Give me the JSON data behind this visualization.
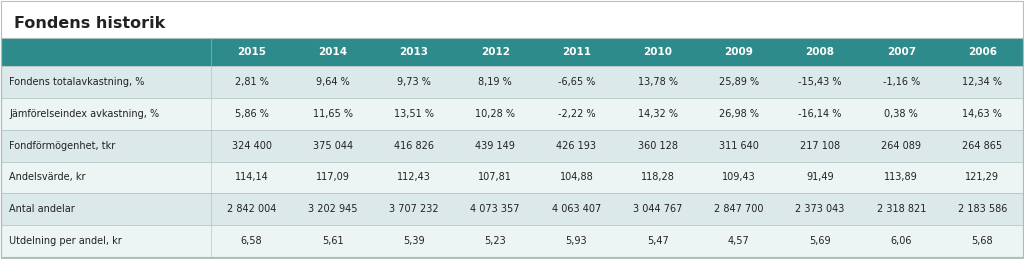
{
  "title": "Fondens historik",
  "header_years": [
    "2015",
    "2014",
    "2013",
    "2012",
    "2011",
    "2010",
    "2009",
    "2008",
    "2007",
    "2006"
  ],
  "rows": [
    {
      "label": "Fondens totalavkastning, %",
      "values": [
        "2,81 %",
        "9,64 %",
        "9,73 %",
        "8,19 %",
        "-6,65 %",
        "13,78 %",
        "25,89 %",
        "-15,43 %",
        "-1,16 %",
        "12,34 %"
      ]
    },
    {
      "label": "Jämförelseindex avkastning, %",
      "values": [
        "5,86 %",
        "11,65 %",
        "13,51 %",
        "10,28 %",
        "-2,22 %",
        "14,32 %",
        "26,98 %",
        "-16,14 %",
        "0,38 %",
        "14,63 %"
      ]
    },
    {
      "label": "Fondförmögenhet, tkr",
      "values": [
        "324 400",
        "375 044",
        "416 826",
        "439 149",
        "426 193",
        "360 128",
        "311 640",
        "217 108",
        "264 089",
        "264 865"
      ]
    },
    {
      "label": "Andelsvärde, kr",
      "values": [
        "114,14",
        "117,09",
        "112,43",
        "107,81",
        "104,88",
        "118,28",
        "109,43",
        "91,49",
        "113,89",
        "121,29"
      ]
    },
    {
      "label": "Antal andelar",
      "values": [
        "2 842 004",
        "3 202 945",
        "3 707 232",
        "4 073 357",
        "4 063 407",
        "3 044 767",
        "2 847 700",
        "2 373 043",
        "2 318 821",
        "2 183 586"
      ]
    },
    {
      "label": "Utdelning per andel, kr",
      "values": [
        "6,58",
        "5,61",
        "5,39",
        "5,23",
        "5,93",
        "5,47",
        "4,57",
        "5,69",
        "6,06",
        "5,68"
      ]
    }
  ],
  "header_bg": "#2e8b8b",
  "header_text": "#ffffff",
  "odd_row_bg": "#dce9ea",
  "even_row_bg": "#edf4f4",
  "label_text_color": "#222222",
  "value_text_color": "#222222",
  "title_color": "#222222",
  "fig_bg": "#ffffff",
  "table_border_color": "#aabcbc",
  "outer_border_color": "#b0c4c4"
}
